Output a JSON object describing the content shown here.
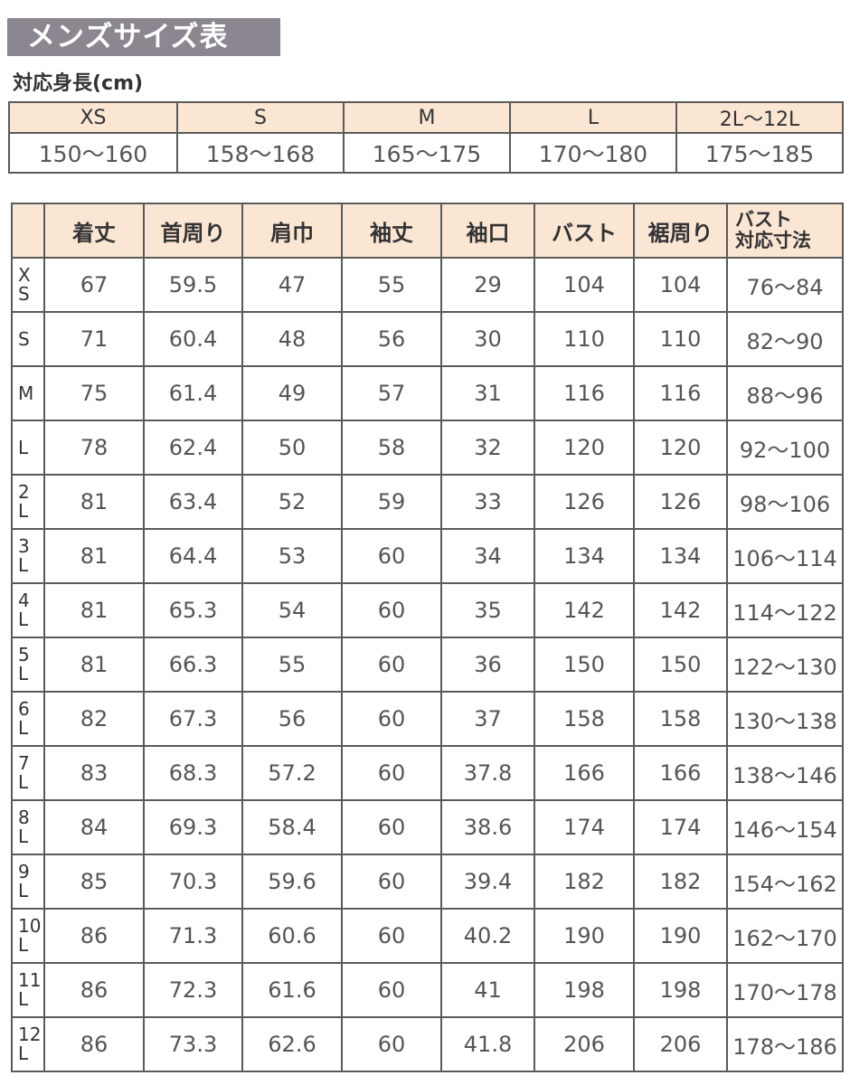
{
  "title": "メンズサイズ表",
  "height_section": {
    "label": "対応身長(cm)",
    "sizes": [
      "XS",
      "S",
      "M",
      "L",
      "2L〜12L"
    ],
    "ranges": [
      "150〜160",
      "158〜168",
      "165〜175",
      "170〜180",
      "175〜185"
    ]
  },
  "size_table": {
    "headers": [
      "",
      "着丈",
      "首周り",
      "肩巾",
      "袖丈",
      "袖口",
      "バスト",
      "裾周り",
      "バスト\n対応寸法"
    ],
    "rows": [
      [
        "X\nS",
        "67",
        "59.5",
        "47",
        "55",
        "29",
        "104",
        "104",
        "76〜84"
      ],
      [
        "S",
        "71",
        "60.4",
        "48",
        "56",
        "30",
        "110",
        "110",
        "82〜90"
      ],
      [
        "M",
        "75",
        "61.4",
        "49",
        "57",
        "31",
        "116",
        "116",
        "88〜96"
      ],
      [
        "L",
        "78",
        "62.4",
        "50",
        "58",
        "32",
        "120",
        "120",
        "92〜100"
      ],
      [
        "2\nL",
        "81",
        "63.4",
        "52",
        "59",
        "33",
        "126",
        "126",
        "98〜106"
      ],
      [
        "3\nL",
        "81",
        "64.4",
        "53",
        "60",
        "34",
        "134",
        "134",
        "106〜114"
      ],
      [
        "4\nL",
        "81",
        "65.3",
        "54",
        "60",
        "35",
        "142",
        "142",
        "114〜122"
      ],
      [
        "5\nL",
        "81",
        "66.3",
        "55",
        "60",
        "36",
        "150",
        "150",
        "122〜130"
      ],
      [
        "6\nL",
        "82",
        "67.3",
        "56",
        "60",
        "37",
        "158",
        "158",
        "130〜138"
      ],
      [
        "7\nL",
        "83",
        "68.3",
        "57.2",
        "60",
        "37.8",
        "166",
        "166",
        "138〜146"
      ],
      [
        "8\nL",
        "84",
        "69.3",
        "58.4",
        "60",
        "38.6",
        "174",
        "174",
        "146〜154"
      ],
      [
        "9\nL",
        "85",
        "70.3",
        "59.6",
        "60",
        "39.4",
        "182",
        "182",
        "154〜162"
      ],
      [
        "10\nL",
        "86",
        "71.3",
        "60.6",
        "60",
        "40.2",
        "190",
        "190",
        "162〜170"
      ],
      [
        "11\nL",
        "86",
        "72.3",
        "61.6",
        "60",
        "41",
        "198",
        "198",
        "170〜178"
      ],
      [
        "12\nL",
        "86",
        "73.3",
        "62.6",
        "60",
        "41.8",
        "206",
        "206",
        "178〜186"
      ]
    ]
  },
  "colors": {
    "title_bg": "#8b8690",
    "header_bg": "#fbe6d4",
    "border": "#5a5a5a"
  }
}
